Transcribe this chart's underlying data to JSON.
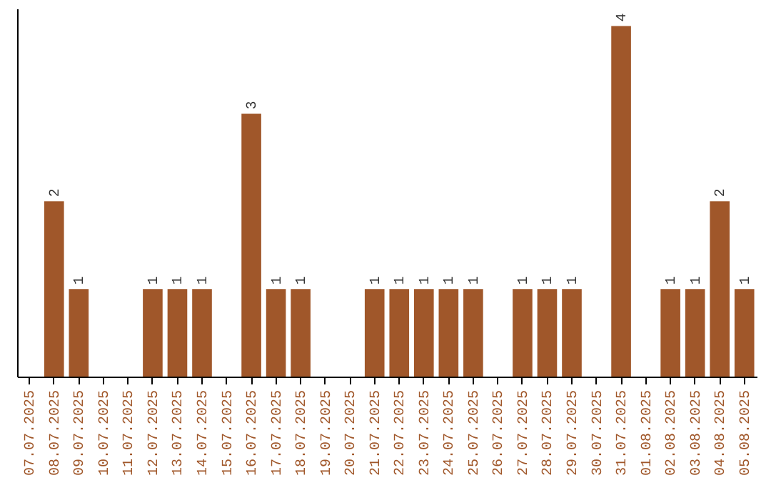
{
  "chart_data": {
    "type": "bar",
    "categories": [
      "07.07.2025",
      "08.07.2025",
      "09.07.2025",
      "10.07.2025",
      "11.07.2025",
      "12.07.2025",
      "13.07.2025",
      "14.07.2025",
      "15.07.2025",
      "16.07.2025",
      "17.07.2025",
      "18.07.2025",
      "19.07.2025",
      "20.07.2025",
      "21.07.2025",
      "22.07.2025",
      "23.07.2025",
      "24.07.2025",
      "25.07.2025",
      "26.07.2025",
      "27.07.2025",
      "28.07.2025",
      "29.07.2025",
      "30.07.2025",
      "31.07.2025",
      "01.08.2025",
      "02.08.2025",
      "03.08.2025",
      "04.08.2025",
      "05.08.2025"
    ],
    "values": [
      null,
      2,
      1,
      null,
      null,
      1,
      1,
      1,
      null,
      3,
      1,
      1,
      null,
      null,
      1,
      1,
      1,
      1,
      1,
      null,
      1,
      1,
      1,
      null,
      4,
      null,
      1,
      1,
      2,
      1
    ],
    "color": "#a0572a",
    "ylim": [
      0,
      4.2
    ],
    "data_labels": true
  }
}
